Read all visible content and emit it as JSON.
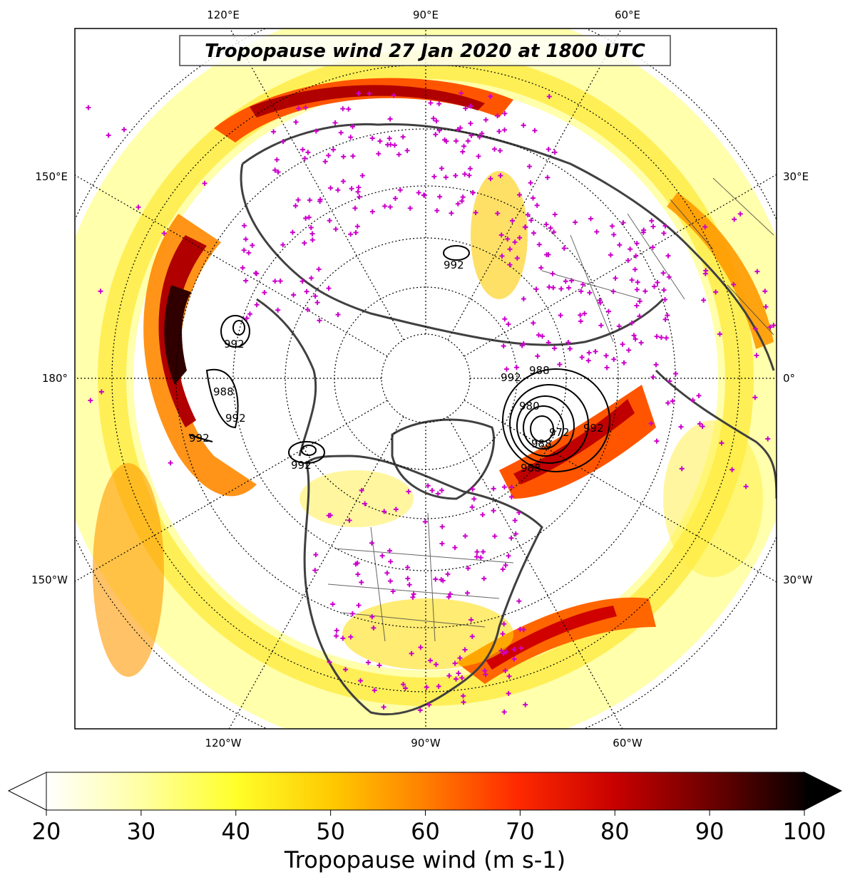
{
  "title": "Tropopause wind 27 Jan 2020 at 1800 UTC",
  "lon_labels_top": [
    "120°E",
    "90°E",
    "60°E"
  ],
  "lon_labels_bottom": [
    "120°W",
    "90°W",
    "60°W"
  ],
  "lon_labels_left": [
    "150°E",
    "180°",
    "150°W"
  ],
  "lon_labels_right": [
    "30°E",
    "0°",
    "30°W"
  ],
  "contour_labels": [
    "992",
    "992",
    "988",
    "992",
    "992",
    "992",
    "992",
    "992",
    "988",
    "980",
    "972",
    "988",
    "992",
    "988"
  ],
  "colorbar": {
    "label": "Tropopause wind (m s-1)",
    "ticks": [
      "20",
      "30",
      "40",
      "50",
      "60",
      "70",
      "80",
      "90",
      "100"
    ],
    "min": 20,
    "max": 100,
    "extend": "both",
    "colormap": "hot_r"
  },
  "colors": {
    "coastline": "#404040",
    "station_marker": "#cc00cc",
    "contour": "#000000"
  }
}
